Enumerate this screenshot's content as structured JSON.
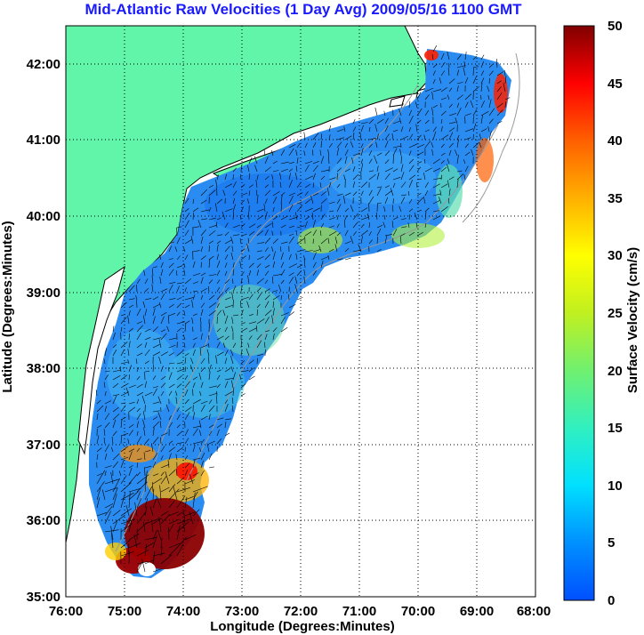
{
  "title": "Mid-Atlantic Raw Velocities (1 Day Avg) 2009/05/16 1100 GMT",
  "x_axis": {
    "label": "Longitude (Degrees:Minutes)",
    "ticks": [
      "76:00",
      "75:00",
      "74:00",
      "73:00",
      "72:00",
      "71:00",
      "70:00",
      "69:00",
      "68:00"
    ]
  },
  "y_axis": {
    "label": "Latitude (Degrees:Minutes)",
    "ticks": [
      "42:00",
      "41:00",
      "40:00",
      "39:00",
      "38:00",
      "37:00",
      "36:00",
      "35:00"
    ]
  },
  "colorbar": {
    "label": "Surface Velocity (cm/s)",
    "ticks": [
      "50",
      "45",
      "40",
      "35",
      "30",
      "25",
      "20",
      "15",
      "10",
      "5",
      "0"
    ],
    "range": [
      0,
      50
    ],
    "colors": [
      "#0050ff",
      "#00a0ff",
      "#00e8ff",
      "#30f0c0",
      "#70f070",
      "#c0f020",
      "#ffff00",
      "#ffc000",
      "#ff7000",
      "#ff1000",
      "#b00000",
      "#800000"
    ]
  },
  "colors": {
    "land": "#60f5a8",
    "ocean_low": "#1e90ff",
    "high_speed": "#8b0000",
    "gridline": "#000000",
    "bathymetry": "#999999"
  }
}
